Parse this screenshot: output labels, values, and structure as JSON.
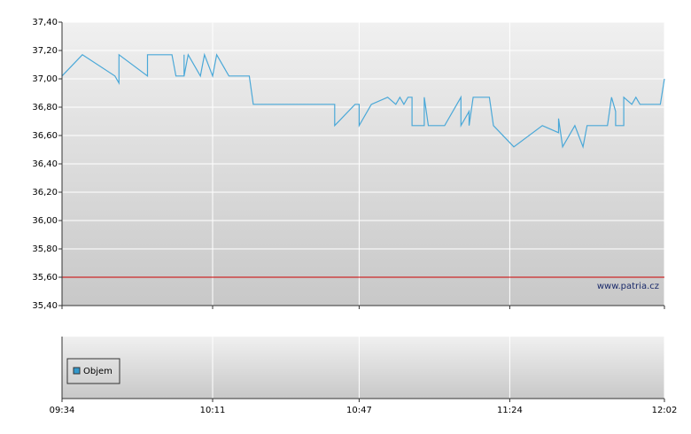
{
  "chart_data": {
    "type": "line",
    "x": [
      "09:34",
      "09:39",
      "09:47",
      "09:48",
      "09:48",
      "09:55",
      "09:55",
      "10:01",
      "10:02",
      "10:04",
      "10:04",
      "10:04",
      "10:05",
      "10:08",
      "10:09",
      "10:11",
      "10:12",
      "10:15",
      "10:20",
      "10:21",
      "10:41",
      "10:41",
      "10:46",
      "10:47",
      "10:47",
      "10:50",
      "10:54",
      "10:56",
      "10:57",
      "10:58",
      "10:59",
      "11:00",
      "11:00",
      "11:03",
      "11:03",
      "11:04",
      "11:08",
      "11:12",
      "11:12",
      "11:14",
      "11:14",
      "11:15",
      "11:19",
      "11:20",
      "11:25",
      "11:32",
      "11:36",
      "11:36",
      "11:37",
      "11:40",
      "11:42",
      "11:43",
      "11:48",
      "11:49",
      "11:50",
      "11:50",
      "11:52",
      "11:52",
      "11:54",
      "11:55",
      "11:56",
      "12:01",
      "12:02"
    ],
    "series": [
      {
        "color": "#4aa8d8",
        "values": [
          37.02,
          37.17,
          37.02,
          36.97,
          37.17,
          37.02,
          37.17,
          37.17,
          37.02,
          37.02,
          37.17,
          37.02,
          37.17,
          37.02,
          37.17,
          37.02,
          37.17,
          37.02,
          37.02,
          36.82,
          36.82,
          36.67,
          36.82,
          36.82,
          36.67,
          36.82,
          36.87,
          36.82,
          36.87,
          36.82,
          36.87,
          36.87,
          36.67,
          36.67,
          36.87,
          36.67,
          36.67,
          36.87,
          36.67,
          36.77,
          36.67,
          36.87,
          36.87,
          36.67,
          36.52,
          36.67,
          36.62,
          36.72,
          36.52,
          36.67,
          36.52,
          36.67,
          36.67,
          36.87,
          36.77,
          36.67,
          36.67,
          36.87,
          36.82,
          36.87,
          36.82,
          36.82,
          37.0
        ]
      }
    ],
    "xlim": [
      "09:34",
      "12:02"
    ],
    "xticks": [
      "09:34",
      "10:11",
      "10:47",
      "11:24",
      "12:02"
    ],
    "ylim": [
      35.4,
      37.4
    ],
    "yticks": [
      {
        "value": 35.4,
        "label": "35,40"
      },
      {
        "value": 35.6,
        "label": "35,60"
      },
      {
        "value": 35.8,
        "label": "35,80"
      },
      {
        "value": 36.0,
        "label": "36,00"
      },
      {
        "value": 36.2,
        "label": "36,20"
      },
      {
        "value": 36.4,
        "label": "36,40"
      },
      {
        "value": 36.6,
        "label": "36,60"
      },
      {
        "value": 36.8,
        "label": "36,80"
      },
      {
        "value": 37.0,
        "label": "37,00"
      },
      {
        "value": 37.2,
        "label": "37,20"
      },
      {
        "value": 37.4,
        "label": "37,40"
      }
    ],
    "reference_line": {
      "value": 35.6,
      "color": "#cc0000"
    },
    "grid": true,
    "watermark": "www.patria.cz",
    "volume_legend": {
      "name": "Objem",
      "color": "#3399cc"
    }
  }
}
